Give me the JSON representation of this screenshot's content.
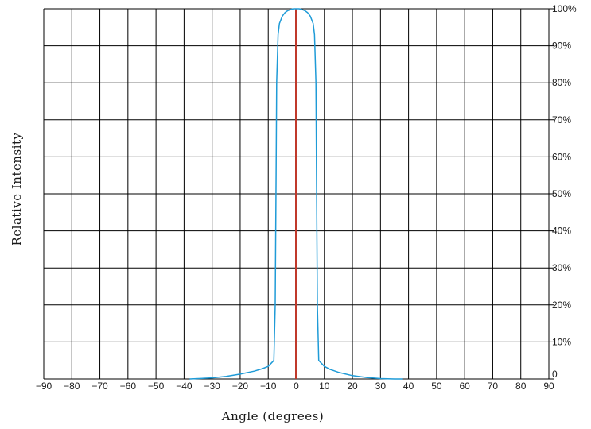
{
  "chart_data": {
    "type": "line",
    "title": "",
    "xlabel": "Angle (degrees)",
    "ylabel": "Relative Intensity",
    "xlim": [
      -90,
      90
    ],
    "ylim": [
      0,
      100
    ],
    "x_ticks": [
      -90,
      -80,
      -70,
      -60,
      -50,
      -40,
      -30,
      -20,
      -10,
      0,
      10,
      20,
      30,
      40,
      50,
      60,
      70,
      80,
      90
    ],
    "x_tick_labels": [
      "−90",
      "−80",
      "−70",
      "−60",
      "−50",
      "−40",
      "−30",
      "−20",
      "−10",
      "0",
      "10",
      "20",
      "30",
      "40",
      "50",
      "60",
      "70",
      "80",
      "90"
    ],
    "y_ticks": [
      0,
      10,
      20,
      30,
      40,
      50,
      60,
      70,
      80,
      90,
      100
    ],
    "y_tick_labels": [
      "0",
      "10%",
      "20%",
      "30%",
      "40%",
      "50%",
      "60%",
      "70%",
      "80%",
      "90%",
      "100%"
    ],
    "y_axis_side": "right",
    "grid": true,
    "colors": {
      "curve": "#1f9bd7",
      "center_line": "#c0392b",
      "grid": "#000000"
    },
    "center_line_x": 0,
    "series": [
      {
        "x": [
          -38,
          -35,
          -30,
          -25,
          -20,
          -15,
          -12,
          -10,
          -8,
          -7.5,
          -7.2,
          -7,
          -6.5,
          -6,
          -5,
          -4,
          -3,
          -2,
          -1,
          0,
          1,
          2,
          3,
          4,
          5,
          6,
          6.5,
          7,
          7.2,
          7.5,
          8,
          10,
          12,
          15,
          20,
          25,
          30,
          35,
          38
        ],
        "y": [
          0,
          0.1,
          0.3,
          0.7,
          1.3,
          2.1,
          2.8,
          3.4,
          5,
          20,
          55,
          80,
          93,
          96,
          98,
          99,
          99.5,
          99.8,
          100,
          100,
          100,
          99.8,
          99.5,
          99,
          98,
          96,
          93,
          80,
          55,
          20,
          5,
          3.4,
          2.6,
          1.8,
          0.9,
          0.4,
          0.1,
          0,
          0
        ]
      }
    ]
  }
}
